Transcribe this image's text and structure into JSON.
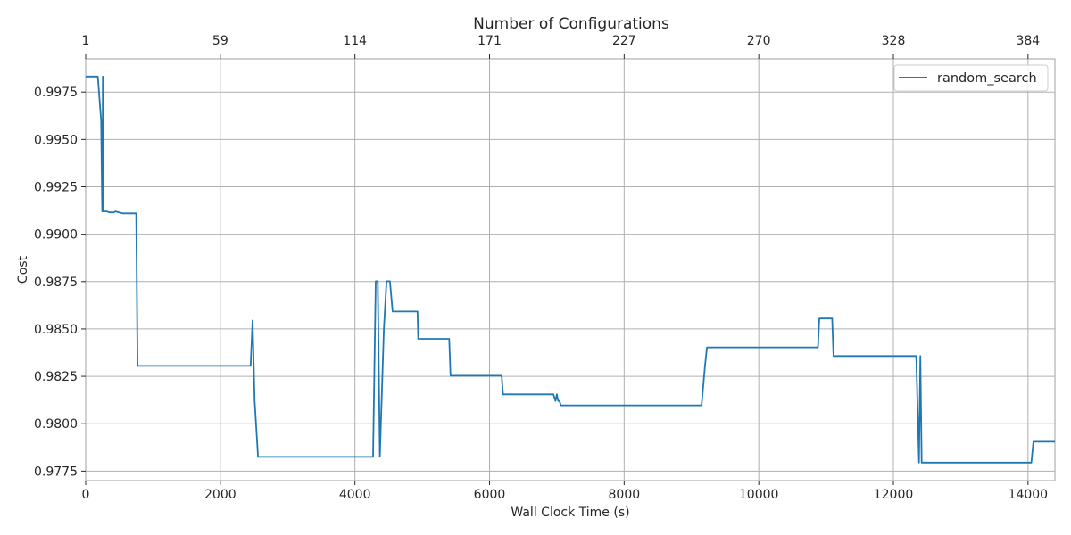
{
  "chart_data": {
    "type": "line",
    "xlabel": "Wall Clock Time (s)",
    "ylabel": "Cost",
    "top_axis_label": "Number of Configurations",
    "xlim": [
      0,
      14400
    ],
    "ylim": [
      0.977,
      0.99925
    ],
    "x_ticks": [
      0,
      2000,
      4000,
      6000,
      8000,
      10000,
      12000,
      14000
    ],
    "x_tick_labels": [
      "0",
      "2000",
      "4000",
      "6000",
      "8000",
      "10000",
      "12000",
      "14000"
    ],
    "y_ticks": [
      0.9775,
      0.98,
      0.9825,
      0.985,
      0.9875,
      0.99,
      0.9925,
      0.995,
      0.9975
    ],
    "y_tick_labels": [
      "0.9775",
      "0.9800",
      "0.9825",
      "0.9850",
      "0.9875",
      "0.9900",
      "0.9925",
      "0.9950",
      "0.9975"
    ],
    "top_ticks": [
      0,
      2000,
      4000,
      6000,
      8000,
      10000,
      12000,
      14000
    ],
    "top_tick_labels": [
      "1",
      "59",
      "114",
      "171",
      "227",
      "270",
      "328",
      "384"
    ],
    "grid": true,
    "legend_position": "top-right",
    "series": [
      {
        "name": "random_search",
        "color": "#1f77b4",
        "x": [
          0,
          180,
          230,
          245,
          250,
          255,
          260,
          310,
          350,
          420,
          440,
          550,
          700,
          750,
          770,
          2450,
          2480,
          2510,
          2560,
          4270,
          4310,
          4340,
          4370,
          4430,
          4470,
          4520,
          4560,
          4930,
          4940,
          5400,
          5420,
          6180,
          6200,
          6950,
          6980,
          7000,
          7020,
          7040,
          7060,
          7100,
          9150,
          9200,
          9230,
          10880,
          10900,
          11090,
          11110,
          12340,
          12380,
          12400,
          12420,
          12460,
          14050,
          14080,
          14400
        ],
        "y": [
          0.99832,
          0.99832,
          0.996,
          0.9912,
          0.9912,
          0.99832,
          0.9912,
          0.9912,
          0.99115,
          0.99115,
          0.9912,
          0.9911,
          0.9911,
          0.9911,
          0.98305,
          0.98305,
          0.98545,
          0.9812,
          0.97825,
          0.97825,
          0.98752,
          0.98752,
          0.97825,
          0.985,
          0.98752,
          0.98752,
          0.98592,
          0.98592,
          0.98448,
          0.98448,
          0.98253,
          0.98253,
          0.98155,
          0.98155,
          0.9812,
          0.98155,
          0.9812,
          0.9812,
          0.98097,
          0.98097,
          0.98097,
          0.983,
          0.98403,
          0.98403,
          0.98555,
          0.98555,
          0.98357,
          0.98357,
          0.97795,
          0.98357,
          0.97795,
          0.97795,
          0.97795,
          0.97905,
          0.97905
        ]
      }
    ]
  }
}
